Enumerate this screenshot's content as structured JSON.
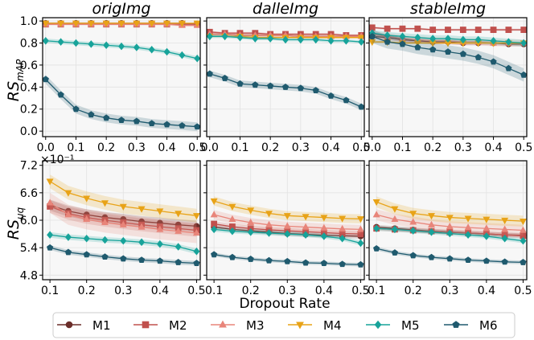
{
  "chart_data": {
    "type": "line",
    "xlabel": "Dropout Rate",
    "columns": [
      "origImg",
      "dalleImg",
      "stableImg"
    ],
    "colors": {
      "M1": "#6b2e2a",
      "M2": "#c0504d",
      "M3": "#e8857a",
      "M4": "#e8a317",
      "M5": "#17a39a",
      "M6": "#1f5a6e"
    },
    "markers": {
      "M1": "circle",
      "M2": "square",
      "M3": "triangle-up",
      "M4": "triangle-down",
      "M5": "diamond",
      "M6": "pentagon"
    },
    "legend": [
      "M1",
      "M2",
      "M3",
      "M4",
      "M5",
      "M6"
    ],
    "rows": [
      {
        "ylabel_main": "RS",
        "ylabel_sub": "mAP",
        "ylim": [
          -0.05,
          1.03
        ],
        "yticks": [
          0.0,
          0.2,
          0.4,
          0.6,
          0.8,
          1.0
        ],
        "ytick_labels": [
          "0.0",
          "0.2",
          "0.4",
          "0.6",
          "0.8",
          "1.0"
        ],
        "x": [
          0.0,
          0.05,
          0.1,
          0.15,
          0.2,
          0.25,
          0.3,
          0.35,
          0.4,
          0.45,
          0.5
        ],
        "xlim": [
          -0.01,
          0.51
        ],
        "xticks": [
          0.0,
          0.1,
          0.2,
          0.3,
          0.4,
          0.5
        ],
        "xtick_labels": [
          "0.0",
          "0.1",
          "0.2",
          "0.3",
          "0.4",
          "0.5"
        ],
        "panels": [
          {
            "title": "origImg",
            "series": [
              {
                "name": "M1",
                "values": [
                  0.98,
                  0.98,
                  0.98,
                  0.98,
                  0.98,
                  0.98,
                  0.98,
                  0.98,
                  0.98,
                  0.98,
                  0.97
                ],
                "band": 0.005
              },
              {
                "name": "M2",
                "values": [
                  0.97,
                  0.97,
                  0.97,
                  0.97,
                  0.97,
                  0.97,
                  0.97,
                  0.97,
                  0.97,
                  0.97,
                  0.97
                ],
                "band": 0.005
              },
              {
                "name": "M3",
                "values": [
                  0.97,
                  0.97,
                  0.97,
                  0.97,
                  0.97,
                  0.97,
                  0.97,
                  0.97,
                  0.97,
                  0.96,
                  0.96
                ],
                "band": 0.01
              },
              {
                "name": "M4",
                "values": [
                  0.98,
                  0.98,
                  0.98,
                  0.98,
                  0.98,
                  0.98,
                  0.98,
                  0.98,
                  0.98,
                  0.98,
                  0.98
                ],
                "band": 0.005
              },
              {
                "name": "M5",
                "values": [
                  0.82,
                  0.81,
                  0.8,
                  0.79,
                  0.78,
                  0.77,
                  0.76,
                  0.74,
                  0.72,
                  0.69,
                  0.66
                ],
                "band": 0.02
              },
              {
                "name": "M6",
                "values": [
                  0.47,
                  0.33,
                  0.2,
                  0.15,
                  0.12,
                  0.1,
                  0.09,
                  0.07,
                  0.06,
                  0.05,
                  0.04
                ],
                "band": 0.04
              }
            ]
          },
          {
            "title": "dalleImg",
            "series": [
              {
                "name": "M1",
                "values": [
                  0.88,
                  0.88,
                  0.87,
                  0.87,
                  0.87,
                  0.87,
                  0.86,
                  0.86,
                  0.86,
                  0.86,
                  0.86
                ],
                "band": 0.01
              },
              {
                "name": "M2",
                "values": [
                  0.9,
                  0.89,
                  0.89,
                  0.89,
                  0.88,
                  0.88,
                  0.88,
                  0.88,
                  0.88,
                  0.87,
                  0.87
                ],
                "band": 0.01
              },
              {
                "name": "M3",
                "values": [
                  0.88,
                  0.88,
                  0.87,
                  0.87,
                  0.87,
                  0.87,
                  0.86,
                  0.86,
                  0.86,
                  0.86,
                  0.86
                ],
                "band": 0.015
              },
              {
                "name": "M4",
                "values": [
                  0.86,
                  0.86,
                  0.86,
                  0.85,
                  0.85,
                  0.85,
                  0.85,
                  0.85,
                  0.85,
                  0.85,
                  0.85
                ],
                "band": 0.01
              },
              {
                "name": "M5",
                "values": [
                  0.86,
                  0.86,
                  0.85,
                  0.84,
                  0.84,
                  0.83,
                  0.83,
                  0.83,
                  0.82,
                  0.82,
                  0.81
                ],
                "band": 0.015
              },
              {
                "name": "M6",
                "values": [
                  0.52,
                  0.48,
                  0.43,
                  0.42,
                  0.41,
                  0.4,
                  0.39,
                  0.37,
                  0.32,
                  0.28,
                  0.22
                ],
                "band": 0.03
              }
            ]
          },
          {
            "title": "stableImg",
            "series": [
              {
                "name": "M1",
                "values": [
                  0.86,
                  0.85,
                  0.83,
                  0.82,
                  0.81,
                  0.81,
                  0.8,
                  0.8,
                  0.8,
                  0.79,
                  0.79
                ],
                "band": 0.02
              },
              {
                "name": "M2",
                "values": [
                  0.94,
                  0.93,
                  0.93,
                  0.93,
                  0.92,
                  0.92,
                  0.92,
                  0.92,
                  0.92,
                  0.92,
                  0.92
                ],
                "band": 0.01
              },
              {
                "name": "M3",
                "values": [
                  0.88,
                  0.86,
                  0.84,
                  0.83,
                  0.82,
                  0.82,
                  0.81,
                  0.81,
                  0.8,
                  0.8,
                  0.8
                ],
                "band": 0.03
              },
              {
                "name": "M4",
                "values": [
                  0.81,
                  0.81,
                  0.8,
                  0.8,
                  0.8,
                  0.8,
                  0.8,
                  0.8,
                  0.8,
                  0.8,
                  0.8
                ],
                "band": 0.01
              },
              {
                "name": "M5",
                "values": [
                  0.89,
                  0.87,
                  0.86,
                  0.85,
                  0.84,
                  0.84,
                  0.83,
                  0.83,
                  0.82,
                  0.81,
                  0.8
                ],
                "band": 0.03
              },
              {
                "name": "M6",
                "values": [
                  0.86,
                  0.81,
                  0.79,
                  0.76,
                  0.74,
                  0.72,
                  0.7,
                  0.67,
                  0.63,
                  0.57,
                  0.51
                ],
                "band": 0.06
              }
            ]
          }
        ]
      },
      {
        "ylabel_main": "RS",
        "ylabel_sub": "uq",
        "ylim": [
          4.7,
          7.3
        ],
        "yticks": [
          4.8,
          5.4,
          6.0,
          6.6,
          7.2
        ],
        "ytick_labels": [
          "4.8",
          "5.4",
          "6.0",
          "6.6",
          "7.2"
        ],
        "offset_label": "×10⁻¹",
        "x": [
          0.1,
          0.15,
          0.2,
          0.25,
          0.3,
          0.35,
          0.4,
          0.45,
          0.5
        ],
        "xlim": [
          0.08,
          0.51
        ],
        "xticks": [
          0.1,
          0.2,
          0.3,
          0.4,
          0.5
        ],
        "xtick_labels": [
          "0.1",
          "0.2",
          "0.3",
          "0.4",
          "0.5"
        ],
        "panels": [
          {
            "title": "",
            "series": [
              {
                "name": "M1",
                "values": [
                  6.33,
                  6.2,
                  6.12,
                  6.06,
                  6.02,
                  5.97,
                  5.94,
                  5.9,
                  5.87
                ],
                "band": 0.12
              },
              {
                "name": "M2",
                "values": [
                  6.3,
                  6.15,
                  6.06,
                  6.0,
                  5.95,
                  5.9,
                  5.86,
                  5.82,
                  5.78
                ],
                "band": 0.14
              },
              {
                "name": "M3",
                "values": [
                  6.38,
                  6.12,
                  6.02,
                  5.95,
                  5.9,
                  5.85,
                  5.8,
                  5.76,
                  5.72
                ],
                "band": 0.22
              },
              {
                "name": "M4",
                "values": [
                  6.85,
                  6.6,
                  6.48,
                  6.38,
                  6.3,
                  6.25,
                  6.2,
                  6.15,
                  6.1
                ],
                "band": 0.15
              },
              {
                "name": "M5",
                "values": [
                  5.68,
                  5.63,
                  5.6,
                  5.57,
                  5.55,
                  5.52,
                  5.48,
                  5.42,
                  5.32
                ],
                "band": 0.06
              },
              {
                "name": "M6",
                "values": [
                  5.4,
                  5.3,
                  5.25,
                  5.2,
                  5.16,
                  5.13,
                  5.11,
                  5.08,
                  5.06
                ],
                "band": 0.05
              }
            ]
          },
          {
            "title": "",
            "series": [
              {
                "name": "M1",
                "values": [
                  5.85,
                  5.8,
                  5.77,
                  5.74,
                  5.71,
                  5.69,
                  5.67,
                  5.66,
                  5.65
                ],
                "band": 0.05
              },
              {
                "name": "M2",
                "values": [
                  5.92,
                  5.86,
                  5.82,
                  5.79,
                  5.77,
                  5.75,
                  5.73,
                  5.71,
                  5.7
                ],
                "band": 0.06
              },
              {
                "name": "M3",
                "values": [
                  6.12,
                  6.02,
                  5.95,
                  5.9,
                  5.87,
                  5.85,
                  5.83,
                  5.81,
                  5.8
                ],
                "band": 0.1
              },
              {
                "name": "M4",
                "values": [
                  6.42,
                  6.3,
                  6.22,
                  6.15,
                  6.1,
                  6.08,
                  6.06,
                  6.04,
                  6.03
                ],
                "band": 0.1
              },
              {
                "name": "M5",
                "values": [
                  5.8,
                  5.76,
                  5.74,
                  5.72,
                  5.7,
                  5.68,
                  5.65,
                  5.6,
                  5.5
                ],
                "band": 0.05
              },
              {
                "name": "M6",
                "values": [
                  5.25,
                  5.19,
                  5.15,
                  5.12,
                  5.1,
                  5.07,
                  5.06,
                  5.04,
                  5.03
                ],
                "band": 0.04
              }
            ]
          },
          {
            "title": "",
            "series": [
              {
                "name": "M1",
                "values": [
                  5.85,
                  5.82,
                  5.79,
                  5.76,
                  5.74,
                  5.72,
                  5.7,
                  5.68,
                  5.67
                ],
                "band": 0.05
              },
              {
                "name": "M2",
                "values": [
                  5.82,
                  5.8,
                  5.78,
                  5.76,
                  5.74,
                  5.72,
                  5.7,
                  5.68,
                  5.66
                ],
                "band": 0.05
              },
              {
                "name": "M3",
                "values": [
                  6.12,
                  6.02,
                  5.96,
                  5.9,
                  5.86,
                  5.84,
                  5.82,
                  5.8,
                  5.78
                ],
                "band": 0.12
              },
              {
                "name": "M4",
                "values": [
                  6.4,
                  6.25,
                  6.15,
                  6.1,
                  6.06,
                  6.04,
                  6.02,
                  6.0,
                  5.98
                ],
                "band": 0.12
              },
              {
                "name": "M5",
                "values": [
                  5.82,
                  5.8,
                  5.77,
                  5.74,
                  5.71,
                  5.68,
                  5.65,
                  5.6,
                  5.55
                ],
                "band": 0.05
              },
              {
                "name": "M6",
                "values": [
                  5.38,
                  5.29,
                  5.23,
                  5.19,
                  5.16,
                  5.13,
                  5.11,
                  5.09,
                  5.08
                ],
                "band": 0.04
              }
            ]
          }
        ]
      }
    ]
  }
}
